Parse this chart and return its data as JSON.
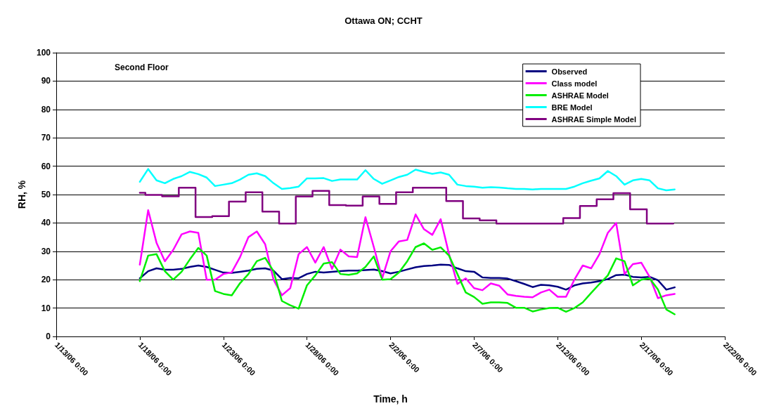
{
  "chart_data": {
    "type": "line",
    "title": "Ottawa ON; CCHT",
    "xlabel": "Time, h",
    "ylabel": "RH, %",
    "annotations": [
      "Second Floor"
    ],
    "xlim": [
      "--01-13T00:00",
      "--02-22T00:00"
    ],
    "xticks": [
      {
        "value": "--01-13T00:00",
        "label": "1/13/06 0:00"
      },
      {
        "value": "--01-18T00:00",
        "label": "1/18/06 0:00"
      },
      {
        "value": "--01-23T00:00",
        "label": "1/23/06 0:00"
      },
      {
        "value": "--01-28T00:00",
        "label": "1/28/06 0:00"
      },
      {
        "value": "--02-02T00:00",
        "label": "2/2/06 0:00"
      },
      {
        "value": "--02-07T00:00",
        "label": "2/7/06 0:00"
      },
      {
        "value": "--02-12T00:00",
        "label": "2/12/06 0:00"
      },
      {
        "value": "--02-17T00:00",
        "label": "2/17/06 0:00"
      },
      {
        "value": "--02-22T00:00",
        "label": "2/22/06 0:00"
      }
    ],
    "ylim": [
      0,
      100
    ],
    "yticks": [
      0,
      10,
      20,
      30,
      40,
      50,
      60,
      70,
      80,
      90,
      100
    ],
    "grid": "y",
    "legend": "top right",
    "marker": "none",
    "line_style": "solid",
    "x": [
      "--01-18T00:00",
      "--01-18T12:00",
      "--01-19T00:00",
      "--01-19T12:00",
      "--01-20T00:00",
      "--01-20T12:00",
      "--01-21T00:00",
      "--01-21T12:00",
      "--01-22T00:00",
      "--01-22T12:00",
      "--01-23T00:00",
      "--01-23T12:00",
      "--01-24T00:00",
      "--01-24T12:00",
      "--01-25T00:00",
      "--01-25T12:00",
      "--01-26T00:00",
      "--01-26T12:00",
      "--01-27T00:00",
      "--01-27T12:00",
      "--01-28T00:00",
      "--01-28T12:00",
      "--01-29T00:00",
      "--01-29T12:00",
      "--01-30T00:00",
      "--01-30T12:00",
      "--01-31T00:00",
      "--01-31T12:00",
      "--02-01T00:00",
      "--02-01T12:00",
      "--02-02T00:00",
      "--02-02T12:00",
      "--02-03T00:00",
      "--02-03T12:00",
      "--02-04T00:00",
      "--02-04T12:00",
      "--02-05T00:00",
      "--02-05T12:00",
      "--02-06T00:00",
      "--02-06T12:00",
      "--02-07T00:00",
      "--02-07T12:00",
      "--02-08T00:00",
      "--02-08T12:00",
      "--02-09T00:00",
      "--02-09T12:00",
      "--02-10T00:00",
      "--02-10T12:00",
      "--02-11T00:00",
      "--02-11T12:00",
      "--02-12T00:00",
      "--02-12T12:00",
      "--02-13T00:00",
      "--02-13T12:00",
      "--02-14T00:00",
      "--02-14T12:00",
      "--02-15T00:00",
      "--02-15T12:00",
      "--02-16T00:00",
      "--02-16T12:00",
      "--02-17T00:00",
      "--02-17T12:00",
      "--02-18T00:00",
      "--02-18T12:00",
      "--02-19T00:00"
    ],
    "series": [
      {
        "name": "Observed",
        "color": "#000080",
        "values": [
          20.5,
          23,
          24,
          23.5,
          23.5,
          23.8,
          24.5,
          25,
          24.5,
          23.5,
          22.5,
          22.4,
          22.8,
          23.2,
          23.8,
          24,
          23.2,
          20.2,
          20.6,
          20.5,
          22,
          22.8,
          22.5,
          22.8,
          23,
          23.2,
          23.2,
          23.4,
          23.6,
          23,
          22.2,
          22.8,
          23.6,
          24.4,
          24.8,
          25,
          25.3,
          25.2,
          24,
          23,
          22.8,
          20.8,
          20.6,
          20.6,
          20.4,
          19.5,
          18.5,
          17.4,
          18.2,
          18,
          17.5,
          16.5,
          18,
          18.7,
          19,
          19.5,
          20.2,
          21.6,
          21.8,
          21,
          20.8,
          21,
          19.8,
          16.5,
          17.3
        ]
      },
      {
        "name": "Class model",
        "color": "#ff00ff",
        "values": [
          25.3,
          44.5,
          33,
          26.5,
          30.5,
          36,
          37,
          36.5,
          20,
          20,
          22,
          22.6,
          28,
          35,
          37,
          32.5,
          20,
          14.5,
          17,
          29,
          31.5,
          26,
          31.5,
          23.8,
          30.6,
          28.2,
          28,
          42,
          31.5,
          20.5,
          30,
          33.5,
          34,
          43,
          37.8,
          35.8,
          41.3,
          29,
          18.5,
          20.5,
          17,
          16.3,
          18.7,
          17.9,
          14.8,
          14.3,
          14,
          13.8,
          15.5,
          16.5,
          14,
          14,
          20,
          25,
          24,
          29,
          36.5,
          40,
          22,
          25.5,
          26,
          21,
          13.5,
          14.5,
          15
        ]
      },
      {
        "name": "ASHRAE Model",
        "color": "#00ee00",
        "values": [
          19.5,
          28.5,
          29,
          23,
          20,
          22.8,
          27.2,
          31.2,
          28.5,
          16,
          15,
          14.5,
          18.8,
          22,
          26.5,
          27.7,
          23,
          12.5,
          11,
          9.8,
          18,
          21.5,
          25.7,
          26.2,
          22,
          21.7,
          22.2,
          24.5,
          28.2,
          20,
          20.2,
          22.5,
          26.5,
          31.5,
          32.8,
          30.5,
          31.4,
          28.5,
          22,
          15.5,
          13.9,
          11.5,
          12,
          12,
          11.8,
          10.1,
          10.1,
          8.8,
          9.5,
          10,
          10.1,
          8.7,
          10,
          12,
          15.3,
          18.5,
          21.5,
          27.5,
          26.5,
          18,
          20,
          20.5,
          16.5,
          9.5,
          7.8
        ]
      },
      {
        "name": "BRE Model",
        "color": "#00ffff",
        "values": [
          54.5,
          59,
          55,
          54,
          55.5,
          56.5,
          58,
          57.2,
          56,
          53,
          53.5,
          54,
          55.3,
          57,
          57.5,
          56.5,
          54,
          52,
          52.3,
          52.8,
          55.7,
          55.7,
          55.8,
          54.8,
          55.3,
          55.3,
          55.3,
          58.6,
          55.5,
          53.8,
          55,
          56.2,
          57,
          58.8,
          58,
          57.3,
          57.8,
          57,
          53.5,
          53,
          52.8,
          52.4,
          52.6,
          52.5,
          52.2,
          52,
          52,
          51.8,
          52,
          52,
          52,
          52,
          52.8,
          54,
          54.9,
          55.7,
          58.3,
          56.5,
          53.5,
          55,
          55.5,
          55,
          52.2,
          51.5,
          51.8
        ]
      },
      {
        "name": "ASHRAE Simple Model",
        "color": "#800080",
        "type": "step",
        "x": [
          "--01-18T00:00",
          "--01-18T08:00",
          "--01-19T08:00",
          "--01-20T08:00",
          "--01-21T08:00",
          "--01-22T08:00",
          "--01-23T08:00",
          "--01-24T08:00",
          "--01-25T08:00",
          "--01-26T08:00",
          "--01-27T08:00",
          "--01-28T08:00",
          "--01-29T08:00",
          "--01-30T08:00",
          "--01-31T08:00",
          "--02-01T08:00",
          "--02-02T08:00",
          "--02-03T08:00",
          "--02-05T08:00",
          "--02-06T08:00",
          "--02-07T08:00",
          "--02-08T08:00",
          "--02-12T08:00",
          "--02-13T08:00",
          "--02-14T08:00",
          "--02-15T08:00",
          "--02-16T08:00",
          "--02-17T08:00",
          "--02-18T22:00"
        ],
        "values": [
          50.6,
          49.9,
          49.4,
          52.4,
          42.1,
          42.4,
          47.5,
          50.8,
          44,
          39.8,
          49.3,
          51.3,
          46.3,
          46.1,
          49.3,
          46.7,
          50.8,
          52.4,
          47.7,
          41.6,
          40.9,
          39.8,
          41.7,
          46,
          48.3,
          50.5,
          44.8,
          39.8,
          39.8
        ]
      }
    ]
  }
}
